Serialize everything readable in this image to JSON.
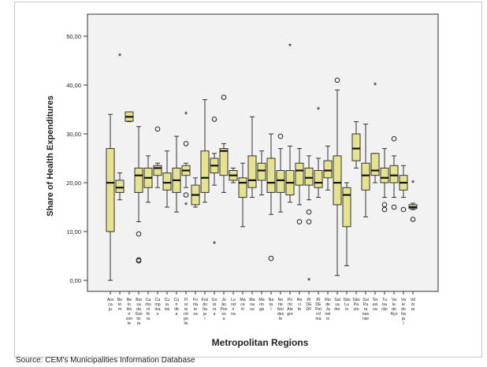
{
  "chart_data": {
    "type": "boxplot",
    "xlabel": "Metropolitan Regions",
    "ylabel": "Share of Health Expenditures",
    "ylim": [
      0,
      50
    ],
    "yticks": [
      "0,00",
      "10,00",
      "20,00",
      "30,00",
      "40,00",
      "50,00"
    ],
    "ytick_values": [
      0,
      10,
      20,
      30,
      40,
      50
    ],
    "grid": false,
    "legend": "none",
    "box_color": "#e6e38f",
    "box_edge_color": "#333333",
    "plot_background": "#f2f2f2",
    "categories": [
      "Ara ca ju",
      "Be lé m",
      "Be lo Ho ri zon te",
      "Bai xa da San tis ta",
      "Ca rbo ní fe ra",
      "Ca mp ina s",
      "Cu ia bá",
      "Cu ri tib a",
      "Fl or ia nó po lis",
      "Fo rta le za",
      "Foz do Ita ja í",
      "Go iâ ni a",
      "Jo ão Pes so a",
      "Lo nd ri na",
      "Ma ce ió",
      "Ma na us",
      "Ma rin gá",
      "Na ta l",
      "No rte Nor des te",
      "Po rto Ale gre",
      "Re ci fe",
      "RI DE DF",
      "RI DE Pet rol ina",
      "Rio de Ja nei ro",
      "Sal va dor",
      "São Lu ís",
      "São Pa ulo",
      "Sul Pa ra nae nse",
      "Ter esi na",
      "Tu ba rão",
      "Va le do Aço",
      "Va le do Ita ja í",
      "Vit ór ia"
    ],
    "boxes": [
      {
        "whislo": 0.0,
        "q1": 10.0,
        "med": 20.0,
        "q3": 27.0,
        "whishi": 34.0,
        "fliers": []
      },
      {
        "whislo": 16.5,
        "q1": 18.0,
        "med": 19.0,
        "q3": 20.5,
        "whishi": 22.0,
        "fliers": [],
        "extremes": [
          46.0
        ]
      },
      {
        "whislo": 32.5,
        "q1": 32.6,
        "med": 33.5,
        "q3": 34.5,
        "whishi": 34.5,
        "fliers": []
      },
      {
        "whislo": 12.0,
        "q1": 18.0,
        "med": 21.5,
        "q3": 23.0,
        "whishi": 31.5,
        "fliers": [
          9.5,
          4.0,
          4.2
        ]
      },
      {
        "whislo": 16.0,
        "q1": 19.0,
        "med": 21.0,
        "q3": 23.0,
        "whishi": 25.5,
        "fliers": []
      },
      {
        "whislo": 19.0,
        "q1": 21.5,
        "med": 23.0,
        "q3": 23.5,
        "whishi": 24.0,
        "fliers": [
          31.0
        ]
      },
      {
        "whislo": 15.0,
        "q1": 18.5,
        "med": 20.0,
        "q3": 22.0,
        "whishi": 26.5,
        "fliers": []
      },
      {
        "whislo": 14.0,
        "q1": 18.0,
        "med": 20.5,
        "q3": 23.0,
        "whishi": 29.5,
        "fliers": []
      },
      {
        "whislo": 19.0,
        "q1": 21.5,
        "med": 22.5,
        "q3": 23.5,
        "whishi": 24.0,
        "fliers": [
          28.0,
          17.5
        ],
        "extremes": [
          34.0,
          15.5
        ]
      },
      {
        "whislo": 15.0,
        "q1": 15.5,
        "med": 17.5,
        "q3": 19.5,
        "whishi": 21.0,
        "fliers": []
      },
      {
        "whislo": 16.0,
        "q1": 18.0,
        "med": 21.0,
        "q3": 26.5,
        "whishi": 37.0,
        "fliers": []
      },
      {
        "whislo": 19.5,
        "q1": 22.0,
        "med": 23.5,
        "q3": 25.0,
        "whishi": 26.0,
        "fliers": [
          33.0
        ],
        "extremes": [
          7.5
        ]
      },
      {
        "whislo": 18.0,
        "q1": 21.5,
        "med": 26.5,
        "q3": 27.0,
        "whishi": 28.0,
        "fliers": [
          37.5
        ]
      },
      {
        "whislo": 20.0,
        "q1": 20.5,
        "med": 21.5,
        "q3": 22.5,
        "whishi": 23.0,
        "fliers": []
      },
      {
        "whislo": 11.0,
        "q1": 17.0,
        "med": 20.0,
        "q3": 21.0,
        "whishi": 24.0,
        "fliers": []
      },
      {
        "whislo": 17.0,
        "q1": 19.0,
        "med": 20.5,
        "q3": 25.5,
        "whishi": 33.5,
        "fliers": []
      },
      {
        "whislo": 17.5,
        "q1": 20.5,
        "med": 22.5,
        "q3": 24.0,
        "whishi": 26.5,
        "fliers": []
      },
      {
        "whislo": 13.5,
        "q1": 18.0,
        "med": 20.0,
        "q3": 25.0,
        "whishi": 30.0,
        "fliers": [
          4.5
        ]
      },
      {
        "whislo": 14.0,
        "q1": 18.0,
        "med": 20.5,
        "q3": 22.5,
        "whishi": 27.0,
        "fliers": [
          29.5
        ]
      },
      {
        "whislo": 16.0,
        "q1": 17.5,
        "med": 20.0,
        "q3": 22.5,
        "whishi": 27.5,
        "fliers": [],
        "extremes": [
          48.0
        ]
      },
      {
        "whislo": 15.5,
        "q1": 19.5,
        "med": 22.5,
        "q3": 24.0,
        "whishi": 27.0,
        "fliers": [
          12.0
        ]
      },
      {
        "whislo": 16.5,
        "q1": 19.5,
        "med": 21.0,
        "q3": 23.0,
        "whishi": 25.5,
        "fliers": [
          14.0,
          12.0
        ],
        "extremes": [
          0.0
        ]
      },
      {
        "whislo": 17.0,
        "q1": 19.0,
        "med": 20.0,
        "q3": 22.5,
        "whishi": 25.0,
        "fliers": [],
        "extremes": [
          35.0
        ]
      },
      {
        "whislo": 18.5,
        "q1": 21.0,
        "med": 22.5,
        "q3": 24.5,
        "whishi": 27.5,
        "fliers": []
      },
      {
        "whislo": 1.0,
        "q1": 15.5,
        "med": 20.0,
        "q3": 25.5,
        "whishi": 39.0,
        "fliers": [
          41.0
        ]
      },
      {
        "whislo": 3.0,
        "q1": 11.0,
        "med": 17.5,
        "q3": 19.0,
        "whishi": 20.0,
        "fliers": []
      },
      {
        "whislo": 23.0,
        "q1": 24.5,
        "med": 27.0,
        "q3": 30.0,
        "whishi": 32.5,
        "fliers": []
      },
      {
        "whislo": 13.0,
        "q1": 18.5,
        "med": 21.5,
        "q3": 24.0,
        "whishi": 32.0,
        "fliers": []
      },
      {
        "whislo": 20.0,
        "q1": 21.5,
        "med": 22.5,
        "q3": 26.0,
        "whishi": 26.0,
        "fliers": [],
        "extremes": [
          40.0
        ]
      },
      {
        "whislo": 17.0,
        "q1": 20.0,
        "med": 21.0,
        "q3": 23.0,
        "whishi": 27.0,
        "fliers": [
          15.5,
          14.5
        ]
      },
      {
        "whislo": 17.0,
        "q1": 20.0,
        "med": 21.5,
        "q3": 23.5,
        "whishi": 25.5,
        "fliers": [
          29.0,
          15.0
        ]
      },
      {
        "whislo": 17.0,
        "q1": 18.5,
        "med": 20.0,
        "q3": 21.5,
        "whishi": 23.5,
        "fliers": [
          14.5
        ]
      },
      {
        "whislo": 14.5,
        "q1": 14.7,
        "med": 15.0,
        "q3": 15.5,
        "whishi": 15.8,
        "fliers": [
          12.5
        ],
        "extremes": [
          20.0
        ]
      }
    ]
  },
  "source": "Source: CEM's Municipalities Information Database"
}
